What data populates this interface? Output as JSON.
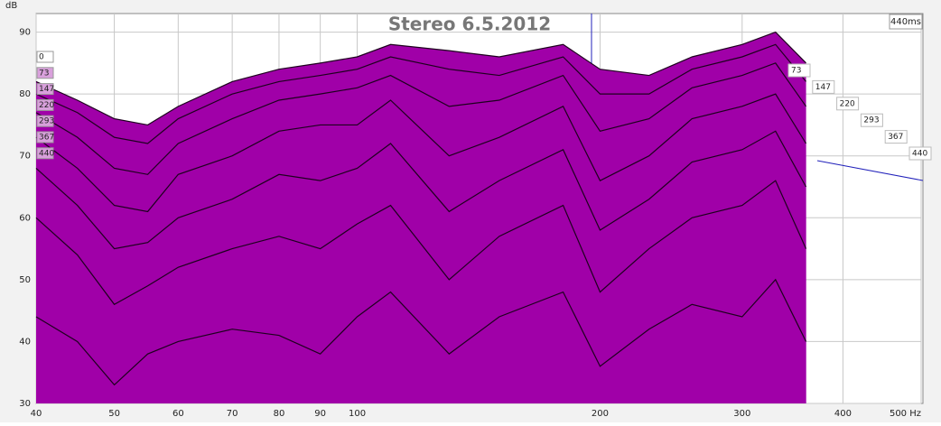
{
  "chart_data": {
    "type": "waterfall",
    "title": "Stereo 6.5.2012",
    "y_label": "dB",
    "time_label": "440ms",
    "x": [
      40,
      45,
      50,
      55,
      60,
      70,
      80,
      90,
      100,
      110,
      130,
      150,
      180,
      200,
      230,
      260,
      300,
      330,
      360
    ],
    "series": [
      {
        "name": "0",
        "values": [
          82,
          79,
          76,
          75,
          78,
          82,
          84,
          85,
          86,
          88,
          87,
          86,
          88,
          84,
          83,
          86,
          88,
          90,
          85
        ]
      },
      {
        "name": "73",
        "values": [
          80,
          77,
          73,
          72,
          76,
          80,
          82,
          83,
          84,
          86,
          84,
          83,
          86,
          80,
          80,
          84,
          86,
          88,
          82
        ]
      },
      {
        "name": "147",
        "values": [
          77,
          73,
          68,
          67,
          72,
          76,
          79,
          80,
          81,
          83,
          78,
          79,
          83,
          74,
          76,
          81,
          83,
          85,
          78
        ]
      },
      {
        "name": "220",
        "values": [
          73,
          68,
          62,
          61,
          67,
          70,
          74,
          75,
          75,
          79,
          70,
          73,
          78,
          66,
          70,
          76,
          78,
          80,
          72
        ]
      },
      {
        "name": "293",
        "values": [
          68,
          62,
          55,
          56,
          60,
          63,
          67,
          66,
          68,
          72,
          61,
          66,
          71,
          58,
          63,
          69,
          71,
          74,
          65
        ]
      },
      {
        "name": "367",
        "values": [
          60,
          54,
          46,
          49,
          52,
          55,
          57,
          55,
          59,
          62,
          50,
          57,
          62,
          48,
          55,
          60,
          62,
          66,
          55
        ]
      },
      {
        "name": "440",
        "values": [
          44,
          40,
          33,
          38,
          40,
          42,
          41,
          38,
          44,
          48,
          38,
          44,
          48,
          36,
          42,
          46,
          44,
          50,
          40
        ]
      }
    ],
    "fill": "#a000a8",
    "line_color": "#1e001e",
    "xlog": true,
    "xlim": [
      40,
      500
    ],
    "xticks": [
      40,
      50,
      60,
      70,
      80,
      90,
      100,
      200,
      300,
      400,
      {
        "value": 500,
        "label": "500 Hz"
      }
    ],
    "ylim": [
      30,
      93
    ],
    "yticks": [
      30,
      40,
      50,
      60,
      70,
      80,
      90
    ],
    "grid": true
  }
}
